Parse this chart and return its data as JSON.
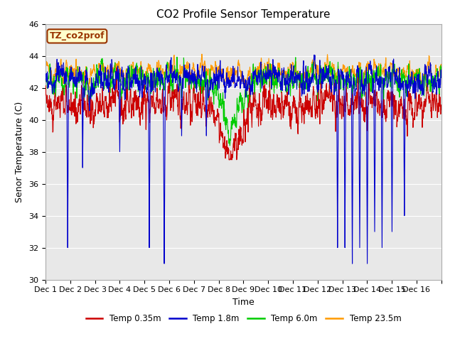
{
  "title": "CO2 Profile Sensor Temperature",
  "ylabel": "Senor Temperature (C)",
  "xlabel": "Time",
  "annotation": "TZ_co2prof",
  "ylim": [
    30,
    46
  ],
  "yticks": [
    30,
    32,
    34,
    36,
    38,
    40,
    42,
    44,
    46
  ],
  "n_days": 16,
  "pts_per_day": 144,
  "colors": {
    "temp035": "#cc0000",
    "temp18": "#0000cc",
    "temp60": "#00cc00",
    "temp235": "#ff9900"
  },
  "legend_labels": [
    "Temp 0.35m",
    "Temp 1.8m",
    "Temp 6.0m",
    "Temp 23.5m"
  ],
  "bg_color": "#e8e8e8",
  "fig_bg": "#ffffff",
  "grid_color": "#ffffff",
  "annotation_bg": "#ffffcc",
  "annotation_border": "#993300",
  "title_fontsize": 11,
  "axis_label_fontsize": 9,
  "tick_fontsize": 8
}
